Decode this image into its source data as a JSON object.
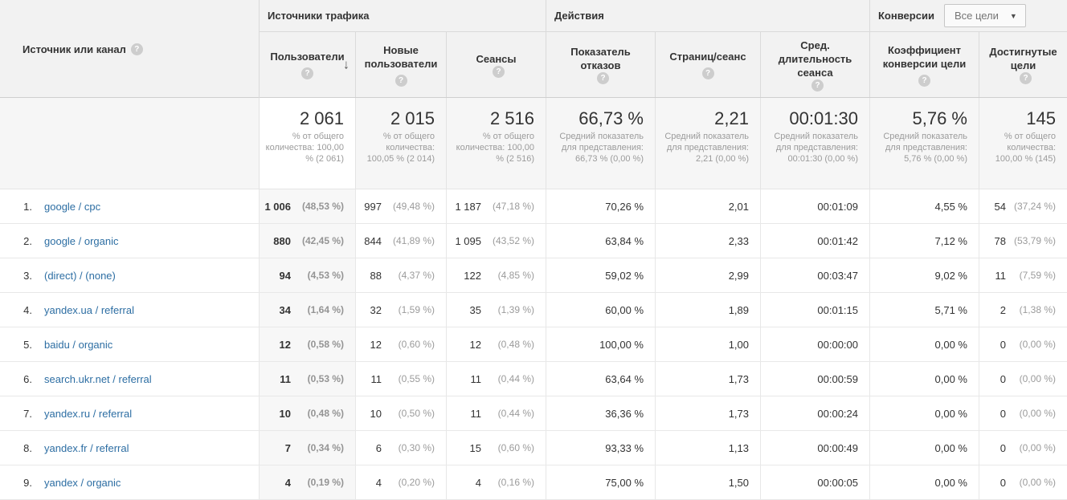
{
  "icons": {
    "help": "?",
    "sort_desc": "↓",
    "dropdown_arrow": "▼"
  },
  "colors": {
    "link": "#2d6ea3",
    "header_bg": "#f2f2f2"
  },
  "table": {
    "source_header": "Источник или канал",
    "groups": {
      "traffic": "Источники трафика",
      "actions": "Действия",
      "conversions": "Конверсии",
      "goals_dropdown": "Все цели"
    },
    "columns": [
      "Пользователи",
      "Новые пользователи",
      "Сеансы",
      "Показатель отказов",
      "Страниц/сеанс",
      "Сред. длительность сеанса",
      "Коэффициент конверсии цели",
      "Достигнутые цели"
    ],
    "totals": [
      {
        "value": "2 061",
        "caption": "% от общего количества: 100,00 % (2 061)"
      },
      {
        "value": "2 015",
        "caption": "% от общего количества: 100,05 % (2 014)"
      },
      {
        "value": "2 516",
        "caption": "% от общего количества: 100,00 % (2 516)"
      },
      {
        "value": "66,73 %",
        "caption": "Средний показатель для представления: 66,73 % (0,00 %)"
      },
      {
        "value": "2,21",
        "caption": "Средний показатель для представления: 2,21 (0,00 %)"
      },
      {
        "value": "00:01:30",
        "caption": "Средний показатель для представления: 00:01:30 (0,00 %)"
      },
      {
        "value": "5,76 %",
        "caption": "Средний показатель для представления: 5,76 % (0,00 %)"
      },
      {
        "value": "145",
        "caption": "% от общего количества: 100,00 % (145)"
      }
    ],
    "rows": [
      {
        "num": "1.",
        "source": "google / cpc",
        "users": "1 006",
        "users_pct": "(48,53 %)",
        "new_users": "997",
        "new_users_pct": "(49,48 %)",
        "sessions": "1 187",
        "sessions_pct": "(47,18 %)",
        "bounce": "70,26 %",
        "pages": "2,01",
        "duration": "00:01:09",
        "conv_rate": "4,55 %",
        "goals": "54",
        "goals_pct": "(37,24 %)"
      },
      {
        "num": "2.",
        "source": "google / organic",
        "users": "880",
        "users_pct": "(42,45 %)",
        "new_users": "844",
        "new_users_pct": "(41,89 %)",
        "sessions": "1 095",
        "sessions_pct": "(43,52 %)",
        "bounce": "63,84 %",
        "pages": "2,33",
        "duration": "00:01:42",
        "conv_rate": "7,12 %",
        "goals": "78",
        "goals_pct": "(53,79 %)"
      },
      {
        "num": "3.",
        "source": "(direct) / (none)",
        "users": "94",
        "users_pct": "(4,53 %)",
        "new_users": "88",
        "new_users_pct": "(4,37 %)",
        "sessions": "122",
        "sessions_pct": "(4,85 %)",
        "bounce": "59,02 %",
        "pages": "2,99",
        "duration": "00:03:47",
        "conv_rate": "9,02 %",
        "goals": "11",
        "goals_pct": "(7,59 %)"
      },
      {
        "num": "4.",
        "source": "yandex.ua / referral",
        "users": "34",
        "users_pct": "(1,64 %)",
        "new_users": "32",
        "new_users_pct": "(1,59 %)",
        "sessions": "35",
        "sessions_pct": "(1,39 %)",
        "bounce": "60,00 %",
        "pages": "1,89",
        "duration": "00:01:15",
        "conv_rate": "5,71 %",
        "goals": "2",
        "goals_pct": "(1,38 %)"
      },
      {
        "num": "5.",
        "source": "baidu / organic",
        "users": "12",
        "users_pct": "(0,58 %)",
        "new_users": "12",
        "new_users_pct": "(0,60 %)",
        "sessions": "12",
        "sessions_pct": "(0,48 %)",
        "bounce": "100,00 %",
        "pages": "1,00",
        "duration": "00:00:00",
        "conv_rate": "0,00 %",
        "goals": "0",
        "goals_pct": "(0,00 %)"
      },
      {
        "num": "6.",
        "source": "search.ukr.net / referral",
        "users": "11",
        "users_pct": "(0,53 %)",
        "new_users": "11",
        "new_users_pct": "(0,55 %)",
        "sessions": "11",
        "sessions_pct": "(0,44 %)",
        "bounce": "63,64 %",
        "pages": "1,73",
        "duration": "00:00:59",
        "conv_rate": "0,00 %",
        "goals": "0",
        "goals_pct": "(0,00 %)"
      },
      {
        "num": "7.",
        "source": "yandex.ru / referral",
        "users": "10",
        "users_pct": "(0,48 %)",
        "new_users": "10",
        "new_users_pct": "(0,50 %)",
        "sessions": "11",
        "sessions_pct": "(0,44 %)",
        "bounce": "36,36 %",
        "pages": "1,73",
        "duration": "00:00:24",
        "conv_rate": "0,00 %",
        "goals": "0",
        "goals_pct": "(0,00 %)"
      },
      {
        "num": "8.",
        "source": "yandex.fr / referral",
        "users": "7",
        "users_pct": "(0,34 %)",
        "new_users": "6",
        "new_users_pct": "(0,30 %)",
        "sessions": "15",
        "sessions_pct": "(0,60 %)",
        "bounce": "93,33 %",
        "pages": "1,13",
        "duration": "00:00:49",
        "conv_rate": "0,00 %",
        "goals": "0",
        "goals_pct": "(0,00 %)"
      },
      {
        "num": "9.",
        "source": "yandex / organic",
        "users": "4",
        "users_pct": "(0,19 %)",
        "new_users": "4",
        "new_users_pct": "(0,20 %)",
        "sessions": "4",
        "sessions_pct": "(0,16 %)",
        "bounce": "75,00 %",
        "pages": "1,50",
        "duration": "00:00:05",
        "conv_rate": "0,00 %",
        "goals": "0",
        "goals_pct": "(0,00 %)"
      }
    ]
  }
}
